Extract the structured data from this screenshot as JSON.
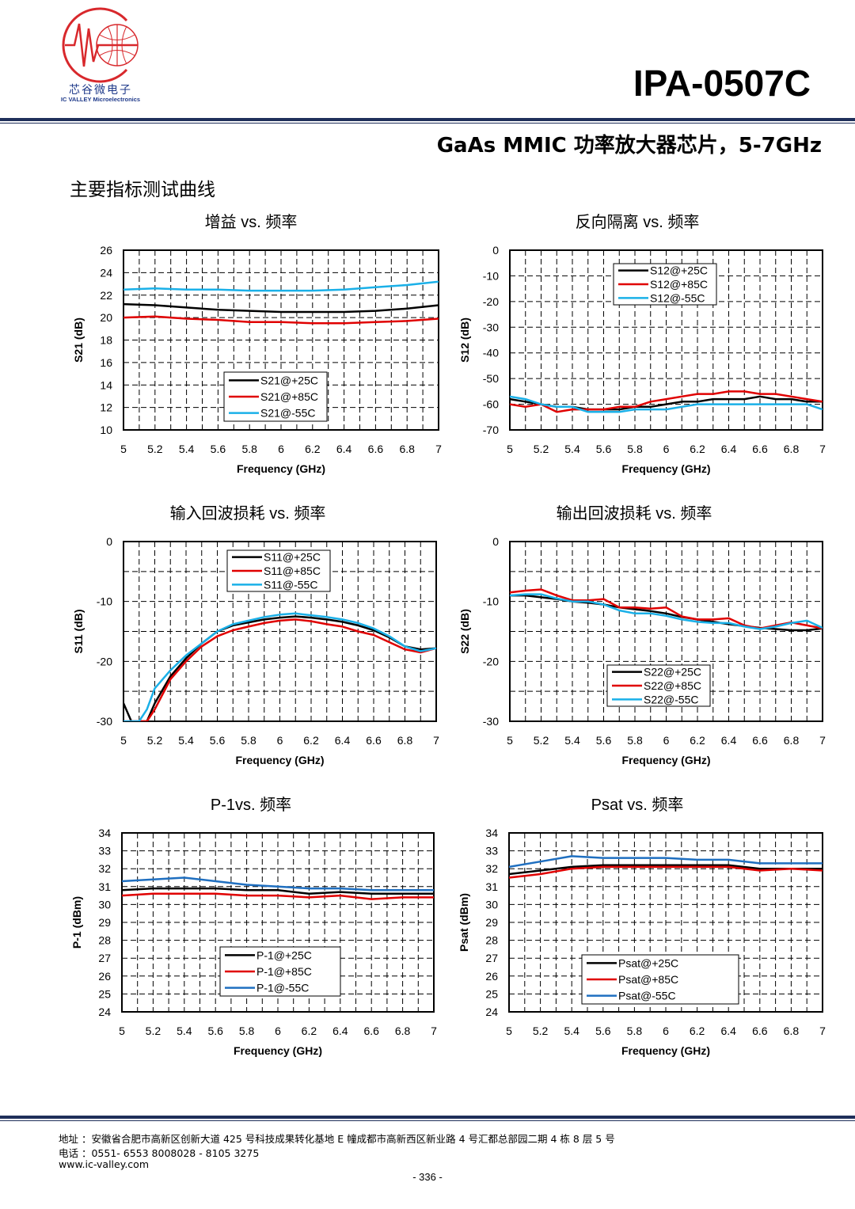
{
  "header": {
    "logo_cn": "芯谷微电子",
    "logo_en": "IC VALLEY Microelectronics",
    "part_number": "IPA-0507C",
    "subtitle": "GaAs MMIC 功率放大器芯片，5-7GHz",
    "section_title": "主要指标测试曲线"
  },
  "colors": {
    "p25": "#000000",
    "p85": "#e00000",
    "m55": "#1ab0e8",
    "m55_power": "#1f6fc0",
    "rule": "#1f2f5a",
    "logo": "#d8282c"
  },
  "chart_data": [
    {
      "id": "s21",
      "type": "line",
      "title": "增益  vs.  频率",
      "xlabel": "Frequency (GHz)",
      "ylabel": "S21 (dB)",
      "xlim": [
        5,
        7
      ],
      "ylim": [
        10,
        26
      ],
      "xticks": [
        "5",
        "5.2",
        "5.4",
        "5.6",
        "5.8",
        "6",
        "6.2",
        "6.4",
        "6.6",
        "6.8",
        "7"
      ],
      "yticks": [
        "10",
        "12",
        "14",
        "16",
        "18",
        "20",
        "22",
        "24",
        "26"
      ],
      "legend_position": "lower-center",
      "x": [
        5.0,
        5.2,
        5.4,
        5.6,
        5.8,
        6.0,
        6.2,
        6.4,
        6.6,
        6.8,
        7.0
      ],
      "series": [
        {
          "name": "S21@+25C",
          "color_key": "p25",
          "values": [
            21.2,
            21.1,
            20.9,
            20.7,
            20.6,
            20.5,
            20.5,
            20.5,
            20.6,
            20.8,
            21.1
          ]
        },
        {
          "name": "S21@+85C",
          "color_key": "p85",
          "values": [
            20.0,
            20.1,
            19.9,
            19.8,
            19.6,
            19.6,
            19.5,
            19.5,
            19.6,
            19.7,
            19.9
          ]
        },
        {
          "name": "S21@-55C",
          "color_key": "m55",
          "values": [
            22.5,
            22.6,
            22.5,
            22.5,
            22.4,
            22.4,
            22.4,
            22.5,
            22.7,
            22.9,
            23.2
          ]
        }
      ]
    },
    {
      "id": "s12",
      "type": "line",
      "title": "反向隔离  vs.  频率",
      "xlabel": "Frequency (GHz)",
      "ylabel": "S12 (dB)",
      "xlim": [
        5,
        7
      ],
      "ylim": [
        -70,
        0
      ],
      "xticks": [
        "5",
        "5.2",
        "5.4",
        "5.6",
        "5.8",
        "6",
        "6.2",
        "6.4",
        "6.6",
        "6.8",
        "7"
      ],
      "yticks": [
        "-70",
        "-60",
        "-50",
        "-40",
        "-30",
        "-20",
        "-10",
        "0"
      ],
      "legend_position": "top-right",
      "x": [
        5.0,
        5.1,
        5.2,
        5.3,
        5.4,
        5.5,
        5.6,
        5.7,
        5.8,
        5.9,
        6.0,
        6.1,
        6.2,
        6.3,
        6.4,
        6.5,
        6.6,
        6.7,
        6.8,
        6.9,
        7.0
      ],
      "series": [
        {
          "name": "S12@+25C",
          "color_key": "p25",
          "values": [
            -58,
            -59,
            -60,
            -61,
            -61,
            -62,
            -62,
            -62,
            -61,
            -61,
            -60,
            -59,
            -59,
            -58,
            -58,
            -58,
            -57,
            -58,
            -58,
            -59,
            -59
          ]
        },
        {
          "name": "S12@+85C",
          "color_key": "p85",
          "values": [
            -60,
            -61,
            -60,
            -63,
            -62,
            -62,
            -62,
            -61,
            -61,
            -59,
            -58,
            -57,
            -56,
            -56,
            -55,
            -55,
            -56,
            -56,
            -57,
            -58,
            -59
          ]
        },
        {
          "name": "S12@-55C",
          "color_key": "m55",
          "values": [
            -57,
            -58,
            -60,
            -61,
            -61,
            -63,
            -63,
            -63,
            -62,
            -62,
            -62,
            -61,
            -60,
            -60,
            -60,
            -60,
            -60,
            -60,
            -60,
            -60,
            -62
          ]
        }
      ]
    },
    {
      "id": "s11",
      "type": "line",
      "title": "输入回波损耗  vs.  频率",
      "xlabel": "Frequency (GHz)",
      "ylabel": "S11 (dB)",
      "xlim": [
        5,
        7
      ],
      "ylim": [
        -30,
        0
      ],
      "xticks": [
        "5",
        "5.2",
        "5.4",
        "5.6",
        "5.8",
        "6",
        "6.2",
        "6.4",
        "6.6",
        "6.8",
        "7"
      ],
      "yticks": [
        "-30",
        "-20",
        "-10",
        "0"
      ],
      "legend_position": "top-center",
      "x": [
        5.0,
        5.05,
        5.1,
        5.15,
        5.2,
        5.3,
        5.4,
        5.5,
        5.6,
        5.7,
        5.8,
        5.9,
        6.0,
        6.1,
        6.2,
        6.3,
        6.4,
        6.5,
        6.6,
        6.7,
        6.8,
        6.9,
        7.0
      ],
      "series": [
        {
          "name": "S11@+25C",
          "color_key": "p25",
          "values": [
            -27,
            -30,
            -30,
            -30,
            -27,
            -22.5,
            -19.5,
            -17,
            -15,
            -14,
            -13.5,
            -13,
            -12.7,
            -12.5,
            -12.7,
            -13,
            -13.4,
            -14,
            -14.8,
            -16,
            -17.5,
            -18,
            -17.8
          ]
        },
        {
          "name": "S11@+85C",
          "color_key": "p85",
          "values": [
            -30,
            -30,
            -30,
            -30,
            -28,
            -23,
            -20,
            -17.5,
            -15.8,
            -14.8,
            -14.2,
            -13.6,
            -13.2,
            -13,
            -13.3,
            -13.8,
            -14.2,
            -15,
            -15.6,
            -16.8,
            -18,
            -18.5,
            -17.8
          ]
        },
        {
          "name": "S11@-55C",
          "color_key": "m55",
          "values": [
            -30,
            -30,
            -30,
            -28,
            -24.5,
            -21.5,
            -19,
            -17,
            -15,
            -13.8,
            -13.2,
            -12.6,
            -12.2,
            -12,
            -12.3,
            -12.6,
            -13,
            -13.6,
            -14.5,
            -15.8,
            -17.5,
            -18.3,
            -17.8
          ]
        }
      ]
    },
    {
      "id": "s22",
      "type": "line",
      "title": "输出回波损耗  vs.  频率",
      "xlabel": "Frequency (GHz)",
      "ylabel": "S22 (dB)",
      "xlim": [
        5,
        7
      ],
      "ylim": [
        -30,
        0
      ],
      "xticks": [
        "5",
        "5.2",
        "5.4",
        "5.6",
        "5.8",
        "6",
        "6.2",
        "6.4",
        "6.6",
        "6.8",
        "7"
      ],
      "yticks": [
        "-30",
        "-20",
        "-10",
        "0"
      ],
      "legend_position": "bottom-center",
      "x": [
        5.0,
        5.1,
        5.2,
        5.3,
        5.4,
        5.5,
        5.6,
        5.7,
        5.8,
        5.9,
        6.0,
        6.1,
        6.2,
        6.3,
        6.4,
        6.5,
        6.6,
        6.7,
        6.8,
        6.9,
        7.0
      ],
      "series": [
        {
          "name": "S22@+25C",
          "color_key": "p25",
          "values": [
            -9,
            -9,
            -9.3,
            -9.6,
            -10,
            -10.2,
            -10.5,
            -11,
            -11.3,
            -11.6,
            -12,
            -12.6,
            -13,
            -13.4,
            -13.8,
            -14.1,
            -14.4,
            -14.6,
            -14.8,
            -14.8,
            -14.5
          ]
        },
        {
          "name": "S22@+85C",
          "color_key": "p85",
          "values": [
            -8.5,
            -8.2,
            -8,
            -9,
            -9.8,
            -9.8,
            -9.6,
            -11,
            -11,
            -11.2,
            -11,
            -12.5,
            -13,
            -13,
            -12.8,
            -14,
            -14.5,
            -14,
            -13.5,
            -14,
            -14.5
          ]
        },
        {
          "name": "S22@-55C",
          "color_key": "m55",
          "values": [
            -9,
            -8.8,
            -8.8,
            -9.5,
            -10,
            -10,
            -10.5,
            -11.5,
            -12,
            -12,
            -12.4,
            -13,
            -13.4,
            -13.6,
            -13.6,
            -14.2,
            -14.6,
            -14.2,
            -13.6,
            -13.2,
            -14.4
          ]
        }
      ]
    },
    {
      "id": "p1",
      "type": "line",
      "title": "P-1vs.  频率",
      "xlabel": "Frequency (GHz)",
      "ylabel": "P-1 (dBm)",
      "xlim": [
        5,
        7
      ],
      "ylim": [
        24,
        34
      ],
      "xticks": [
        "5",
        "5.2",
        "5.4",
        "5.6",
        "5.8",
        "6",
        "6.2",
        "6.4",
        "6.6",
        "6.8",
        "7"
      ],
      "yticks": [
        "24",
        "25",
        "26",
        "27",
        "28",
        "29",
        "30",
        "31",
        "32",
        "33",
        "34"
      ],
      "legend_position": "bottom-center",
      "x": [
        5.0,
        5.2,
        5.4,
        5.6,
        5.8,
        6.0,
        6.2,
        6.4,
        6.6,
        6.8,
        7.0
      ],
      "series": [
        {
          "name": "P-1@+25C",
          "color_key": "p25",
          "values": [
            30.8,
            30.9,
            30.9,
            30.9,
            30.8,
            30.8,
            30.6,
            30.7,
            30.6,
            30.6,
            30.6
          ]
        },
        {
          "name": "P-1@+85C",
          "color_key": "p85",
          "values": [
            30.5,
            30.6,
            30.6,
            30.6,
            30.5,
            30.5,
            30.4,
            30.5,
            30.3,
            30.4,
            30.4
          ]
        },
        {
          "name": "P-1@-55C",
          "color_key": "m55_power",
          "values": [
            31.3,
            31.4,
            31.5,
            31.3,
            31.1,
            31.0,
            30.9,
            30.9,
            30.8,
            30.8,
            30.8
          ]
        }
      ]
    },
    {
      "id": "psat",
      "type": "line",
      "title": "Psat vs.  频率",
      "xlabel": "Frequency (GHz)",
      "ylabel": "Psat (dBm)",
      "xlim": [
        5,
        7
      ],
      "ylim": [
        24,
        34
      ],
      "xticks": [
        "5",
        "5.2",
        "5.4",
        "5.6",
        "5.8",
        "6",
        "6.2",
        "6.4",
        "6.6",
        "6.8",
        "7"
      ],
      "yticks": [
        "24",
        "25",
        "26",
        "27",
        "28",
        "29",
        "30",
        "31",
        "32",
        "33",
        "34"
      ],
      "legend_position": "bottom-center",
      "x": [
        5.0,
        5.2,
        5.4,
        5.6,
        5.8,
        6.0,
        6.2,
        6.4,
        6.6,
        6.8,
        7.0
      ],
      "series": [
        {
          "name": "Psat@+25C",
          "color_key": "p25",
          "values": [
            31.7,
            31.9,
            32.1,
            32.2,
            32.2,
            32.2,
            32.2,
            32.2,
            32.0,
            32.0,
            32.0
          ]
        },
        {
          "name": "Psat@+85C",
          "color_key": "p85",
          "values": [
            31.5,
            31.7,
            32.0,
            32.1,
            32.1,
            32.1,
            32.1,
            32.1,
            31.9,
            32.0,
            31.9
          ]
        },
        {
          "name": "Psat@-55C",
          "color_key": "m55_power",
          "values": [
            32.1,
            32.4,
            32.7,
            32.6,
            32.6,
            32.6,
            32.5,
            32.5,
            32.3,
            32.3,
            32.3
          ]
        }
      ]
    }
  ],
  "footer": {
    "address": "地址 ：安徽省合肥市高新区创新大道 425 号科技成果转化基地 E 幢成都市高新西区新业路 4 号汇都总部园二期 4 栋 8 层 5 号",
    "phone": "电话 ：0551- 6553 8008028 - 8105 3275",
    "website": "www.ic-valley.com",
    "page_number": "- 336 -"
  }
}
